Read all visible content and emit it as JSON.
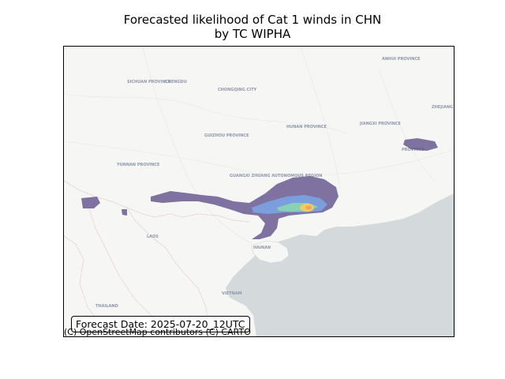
{
  "title_line1": "Forecasted likelihood of Cat 1 winds in CHN",
  "title_line2": "by TC WIPHA",
  "forecast_label": "Forecast Date: 2025-07-20_12UTC",
  "attribution": "(C) OpenStreetMap contributors (C) CARTO",
  "colors": {
    "land": "#f6f6f4",
    "sea": "#d4dadc",
    "border": "#e2c9c9",
    "prob_low": "#5a4a86",
    "prob_mid": "#6fa0e8",
    "prob_high": "#f2c94c"
  },
  "places": {
    "sichuan": "SICHUAN PROVINCE",
    "chengdu": "CHENGDU",
    "chongqing": "CHONGQING CITY",
    "anhui": "ANHUI PROVINCE",
    "zhejiang": "ZHEJIANG",
    "hunan": "HUNAN PROVINCE",
    "jiangxi": "JIANGXI PROVINCE",
    "guizhou": "GUIZHOU PROVINCE",
    "yunnan": "YUNNAN PROVINCE",
    "guangxi": "GUANGXI ZHUANG AUTONOMOUS REGION",
    "laos": "LAOS",
    "hainan": "HAINAN",
    "vietnam": "VIETNAM",
    "thailand": "THAILAND",
    "province": "PROVINCE"
  }
}
